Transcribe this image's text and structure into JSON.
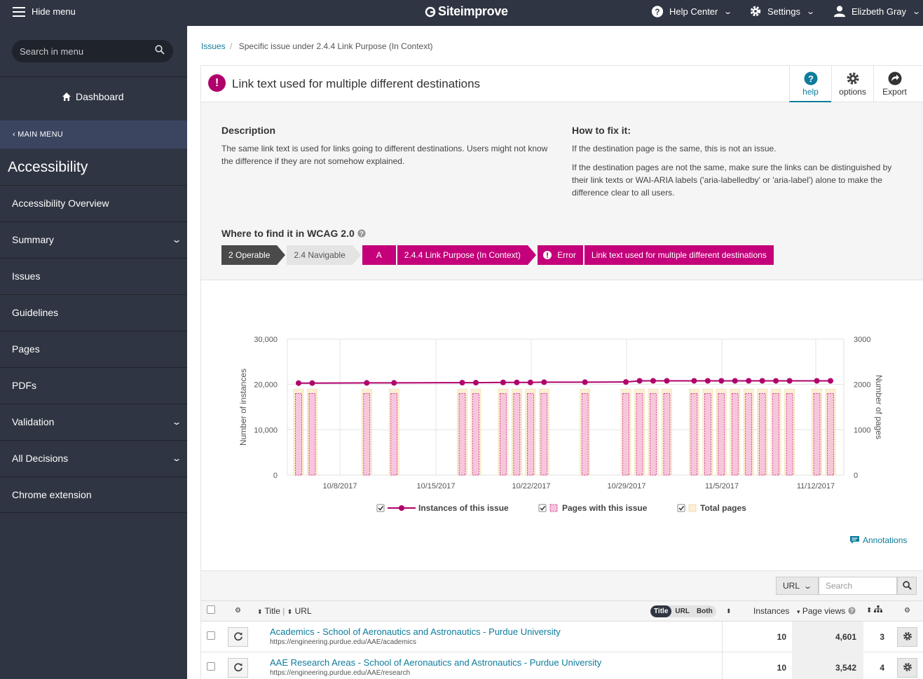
{
  "topbar": {
    "hide_menu": "Hide menu",
    "logo": "Siteimprove",
    "help_center": "Help Center",
    "settings": "Settings",
    "user": "Elizbeth Gray"
  },
  "sidebar": {
    "search_placeholder": "Search in menu",
    "dashboard": "Dashboard",
    "main_menu": "MAIN MENU",
    "section_title": "Accessibility",
    "items": [
      {
        "label": "Accessibility Overview"
      },
      {
        "label": "Summary"
      },
      {
        "label": "Issues"
      },
      {
        "label": "Guidelines"
      },
      {
        "label": "Pages"
      },
      {
        "label": "PDFs"
      },
      {
        "label": "Validation"
      },
      {
        "label": "All Decisions"
      },
      {
        "label": "Chrome extension"
      }
    ]
  },
  "breadcrumb": {
    "link": "Issues",
    "separator": "/",
    "current": "Specific issue under 2.4.4 Link Purpose (In Context)"
  },
  "issue": {
    "icon": "!",
    "title": "Link text used for multiple different destinations",
    "buttons": {
      "help": "help",
      "options": "options",
      "export": "Export"
    },
    "description_heading": "Description",
    "description": "The same link text is used for links going to different destinations. Users might not know the difference if they are not somehow explained.",
    "fix_heading": "How to fix it:",
    "fix_p1": "If the destination page is the same, this is not an issue.",
    "fix_p2": "If the destination pages are not the same, make sure the links can be distinguished by their link texts or WAI-ARIA labels ('aria-labelledby' or 'aria-label') alone to make the difference clear to all users.",
    "wcag_heading": "Where to find it in WCAG 2.0",
    "wcag_crumbs": [
      "2 Operable",
      "2.4 Navigable",
      "A",
      "2.4.4 Link Purpose (In Context)",
      "Error",
      "Link text used for multiple different destinations"
    ]
  },
  "chart_data": {
    "type": "bar",
    "ylabel": "Number of instances",
    "y2label": "Number of pages",
    "ylim": [
      0,
      30000
    ],
    "y2lim": [
      0,
      3000
    ],
    "yticks": [
      "30,000",
      "20,000",
      "10,000",
      "0"
    ],
    "y2ticks": [
      "3000",
      "2000",
      "1000",
      "0"
    ],
    "xticks": [
      "10/8/2017",
      "10/15/2017",
      "10/22/2017",
      "10/29/2017",
      "11/5/2017",
      "11/12/2017"
    ],
    "day_offsets": [
      0,
      1,
      5,
      7,
      12,
      13,
      15,
      16,
      17,
      18,
      21,
      24,
      25,
      26,
      27,
      29,
      30,
      31,
      32,
      33,
      34,
      35,
      36,
      38,
      39
    ],
    "instances": [
      20300,
      20300,
      20350,
      20350,
      20400,
      20400,
      20450,
      20450,
      20450,
      20500,
      20500,
      20550,
      20800,
      20800,
      20800,
      20800,
      20800,
      20800,
      20800,
      20800,
      20800,
      20800,
      20800,
      20800,
      20800
    ],
    "pages_with_issue": [
      1800,
      1800,
      1800,
      1800,
      1800,
      1800,
      1800,
      1800,
      1800,
      1800,
      1800,
      1800,
      1800,
      1800,
      1800,
      1800,
      1800,
      1800,
      1800,
      1800,
      1800,
      1800,
      1800,
      1800,
      1800
    ],
    "total_pages": [
      1900,
      1900,
      1900,
      1900,
      1900,
      1900,
      1900,
      1900,
      1900,
      1900,
      1900,
      1900,
      1900,
      1900,
      1900,
      1900,
      1900,
      1900,
      1900,
      1900,
      1900,
      1900,
      1900,
      1900,
      1900
    ],
    "legend": [
      "Instances of this issue",
      "Pages with this issue",
      "Total pages"
    ],
    "colors": {
      "line": "#b0006b",
      "pages": "#f7c6dc",
      "total": "#fbf0d4"
    }
  },
  "annotations_label": "Annotations",
  "table": {
    "url_select": "URL",
    "search_placeholder": "Search",
    "headers": {
      "title": "Title",
      "url": "URL",
      "instances": "Instances",
      "page_views": "Page views"
    },
    "toggle": [
      "Title",
      "URL",
      "Both"
    ],
    "rows": [
      {
        "title": "Academics - School of Aeronautics and Astronautics - Purdue University",
        "url": "https://engineering.purdue.edu/AAE/academics",
        "instances": "10",
        "page_views": "4,601",
        "level": "3"
      },
      {
        "title": "AAE Research Areas - School of Aeronautics and Astronautics - Purdue University",
        "url": "https://engineering.purdue.edu/AAE/research",
        "instances": "10",
        "page_views": "3,542",
        "level": "4"
      }
    ]
  }
}
